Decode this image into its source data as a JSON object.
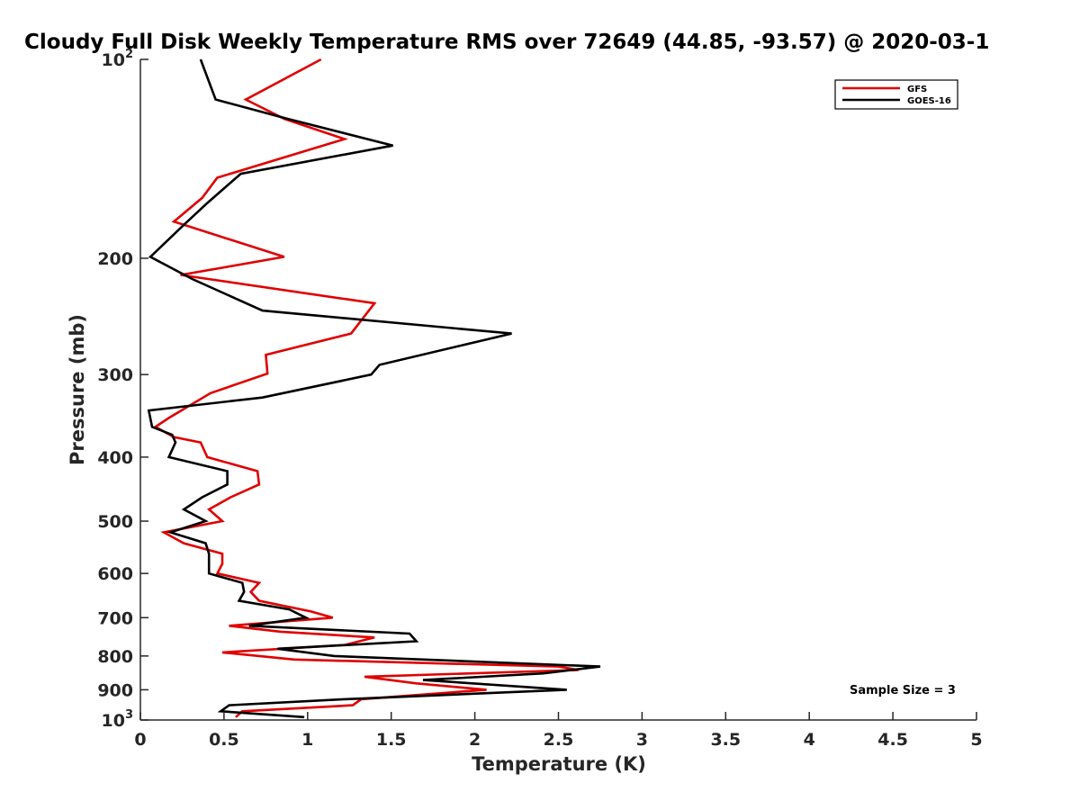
{
  "chart_data": {
    "type": "line",
    "title": "Cloudy Full Disk Weekly Temperature RMS over 72649 (44.85, -93.57) @ 2020-03-1",
    "xlabel": "Temperature (K)",
    "ylabel": "Pressure (mb)",
    "xlim": [
      0,
      5
    ],
    "ylim": [
      100,
      1000
    ],
    "y_scale": "log",
    "y_reversed": true,
    "grid": false,
    "legend_position": "top-right",
    "x_ticks": [
      0,
      0.5,
      1,
      1.5,
      2,
      2.5,
      3,
      3.5,
      4,
      4.5,
      5
    ],
    "x_tick_labels": [
      "0",
      "0.5",
      "1",
      "1.5",
      "2",
      "2.5",
      "3",
      "3.5",
      "4",
      "4.5",
      "5"
    ],
    "y_ticks": [
      100,
      200,
      300,
      400,
      500,
      600,
      700,
      800,
      900,
      1000
    ],
    "y_tick_labels": [
      "10^2",
      "200",
      "300",
      "400",
      "500",
      "600",
      "700",
      "800",
      "900",
      "10^3"
    ],
    "annotation": "Sample Size = 3",
    "series": [
      {
        "name": "GFS",
        "color": "#e00000",
        "points": [
          [
            1.08,
            100
          ],
          [
            0.63,
            115
          ],
          [
            0.86,
            123
          ],
          [
            1.22,
            132
          ],
          [
            0.46,
            151
          ],
          [
            0.37,
            162
          ],
          [
            0.2,
            176
          ],
          [
            0.86,
            199
          ],
          [
            0.24,
            212
          ],
          [
            1.4,
            234
          ],
          [
            1.26,
            260
          ],
          [
            0.75,
            280
          ],
          [
            0.76,
            299
          ],
          [
            0.42,
            320
          ],
          [
            0.17,
            349
          ],
          [
            0.09,
            360
          ],
          [
            0.2,
            373
          ],
          [
            0.36,
            380
          ],
          [
            0.4,
            400
          ],
          [
            0.7,
            420
          ],
          [
            0.71,
            440
          ],
          [
            0.54,
            460
          ],
          [
            0.41,
            480
          ],
          [
            0.49,
            500
          ],
          [
            0.14,
            520
          ],
          [
            0.26,
            540
          ],
          [
            0.49,
            560
          ],
          [
            0.49,
            580
          ],
          [
            0.46,
            600
          ],
          [
            0.71,
            620
          ],
          [
            0.66,
            640
          ],
          [
            0.71,
            660
          ],
          [
            1.02,
            685
          ],
          [
            1.15,
            700
          ],
          [
            0.53,
            720
          ],
          [
            0.84,
            735
          ],
          [
            1.4,
            750
          ],
          [
            1.22,
            770
          ],
          [
            0.49,
            790
          ],
          [
            0.92,
            810
          ],
          [
            2.5,
            830
          ],
          [
            2.62,
            840
          ],
          [
            1.34,
            860
          ],
          [
            1.65,
            880
          ],
          [
            2.07,
            900
          ],
          [
            1.32,
            930
          ],
          [
            1.27,
            950
          ],
          [
            0.61,
            970
          ],
          [
            0.57,
            990
          ]
        ]
      },
      {
        "name": "GOES-16",
        "color": "#000000",
        "points": [
          [
            0.36,
            100
          ],
          [
            0.45,
            115
          ],
          [
            0.88,
            123
          ],
          [
            1.51,
            135
          ],
          [
            0.6,
            149
          ],
          [
            0.4,
            165
          ],
          [
            0.26,
            178
          ],
          [
            0.06,
            199
          ],
          [
            0.31,
            215
          ],
          [
            0.73,
            240
          ],
          [
            2.22,
            260
          ],
          [
            1.43,
            290
          ],
          [
            1.38,
            300
          ],
          [
            0.73,
            325
          ],
          [
            0.05,
            340
          ],
          [
            0.07,
            360
          ],
          [
            0.19,
            370
          ],
          [
            0.21,
            380
          ],
          [
            0.17,
            400
          ],
          [
            0.52,
            420
          ],
          [
            0.52,
            440
          ],
          [
            0.37,
            460
          ],
          [
            0.26,
            480
          ],
          [
            0.39,
            500
          ],
          [
            0.18,
            520
          ],
          [
            0.39,
            540
          ],
          [
            0.41,
            560
          ],
          [
            0.41,
            580
          ],
          [
            0.41,
            600
          ],
          [
            0.61,
            620
          ],
          [
            0.62,
            640
          ],
          [
            0.59,
            660
          ],
          [
            0.89,
            680
          ],
          [
            0.99,
            700
          ],
          [
            0.65,
            720
          ],
          [
            1.61,
            740
          ],
          [
            1.65,
            760
          ],
          [
            0.82,
            780
          ],
          [
            1.16,
            800
          ],
          [
            2.75,
            830
          ],
          [
            2.41,
            850
          ],
          [
            1.69,
            870
          ],
          [
            2.55,
            900
          ],
          [
            1.22,
            930
          ],
          [
            0.53,
            950
          ],
          [
            0.48,
            970
          ],
          [
            0.98,
            990
          ]
        ]
      }
    ]
  }
}
